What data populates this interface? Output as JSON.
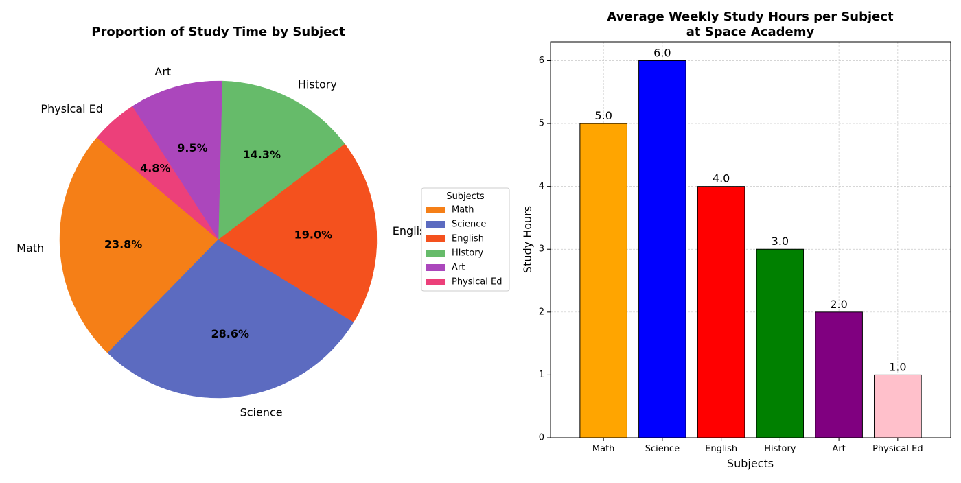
{
  "chart_data": [
    {
      "type": "pie",
      "title": "Proportion of Study Time by Subject",
      "categories": [
        "Math",
        "Science",
        "English",
        "History",
        "Art",
        "Physical Ed"
      ],
      "values": [
        5,
        6,
        4,
        3,
        2,
        1
      ],
      "percent_labels": [
        "23.8%",
        "28.6%",
        "19.0%",
        "14.3%",
        "9.5%",
        "4.8%"
      ],
      "colors": [
        "#f57f17",
        "#5c6bc0",
        "#f4511e",
        "#66bb6a",
        "#ab47bc",
        "#ec407a"
      ],
      "legend": {
        "title": "Subjects",
        "placement": "right",
        "entries": [
          "Math",
          "Science",
          "English",
          "History",
          "Art",
          "Physical Ed"
        ]
      }
    },
    {
      "type": "bar",
      "title_lines": [
        "Average Weekly Study Hours per Subject",
        "at Space Academy"
      ],
      "categories": [
        "Math",
        "Science",
        "English",
        "History",
        "Art",
        "Physical Ed"
      ],
      "values": [
        5.0,
        6.0,
        4.0,
        3.0,
        2.0,
        1.0
      ],
      "value_labels": [
        "5.0",
        "6.0",
        "4.0",
        "3.0",
        "2.0",
        "1.0"
      ],
      "colors": [
        "#ffa500",
        "#0000ff",
        "#ff0000",
        "#008000",
        "#800080",
        "#ffc0cb"
      ],
      "xlabel": "Subjects",
      "ylabel": "Study Hours",
      "ylim": [
        0,
        6.3
      ],
      "yticks": [
        "0",
        "1",
        "2",
        "3",
        "4",
        "5",
        "6"
      ],
      "grid": true
    }
  ]
}
